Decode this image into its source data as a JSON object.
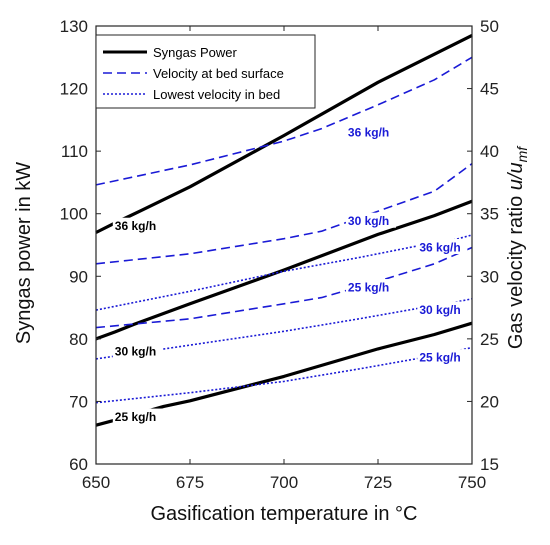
{
  "chart_data": {
    "type": "line",
    "xlabel": "Gasification temperature in °C",
    "ylabel_left": "Syngas power in kW",
    "ylabel_right_prefix": "Gas velocity ratio ",
    "ylabel_right_math": "u/u",
    "ylabel_right_sub": "mf",
    "xlim": [
      650,
      750
    ],
    "ylim_left": [
      60,
      130
    ],
    "ylim_right": [
      15,
      50
    ],
    "x_ticks": [
      650,
      675,
      700,
      725,
      750
    ],
    "y_left_ticks": [
      60,
      70,
      80,
      90,
      100,
      110,
      120,
      130
    ],
    "y_right_ticks": [
      15,
      20,
      25,
      30,
      35,
      40,
      45,
      50
    ],
    "grid": false,
    "legend_position": "top-left",
    "legend": [
      {
        "label": "Syngas Power",
        "style": "solid"
      },
      {
        "label": "Velocity at bed surface",
        "style": "dashed"
      },
      {
        "label": "Lowest velocity in bed",
        "style": "dotted"
      }
    ],
    "colors": {
      "power": "#000000",
      "velocity": "#1a1ad6"
    },
    "series": [
      {
        "group": "power",
        "axis": "left",
        "style": "solid",
        "label": "36 kg/h",
        "x": [
          650,
          655,
          662,
          675,
          700,
          725,
          740,
          750
        ],
        "y": [
          97,
          98.5,
          100.5,
          104.3,
          112.5,
          121,
          125.5,
          128.5
        ]
      },
      {
        "group": "power",
        "axis": "left",
        "style": "solid",
        "label": "30 kg/h",
        "x": [
          650,
          655,
          660,
          675,
          700,
          725,
          740,
          750
        ],
        "y": [
          80,
          81.1,
          82.3,
          85.6,
          91,
          96.7,
          99.7,
          102
        ]
      },
      {
        "group": "power",
        "axis": "left",
        "style": "solid",
        "label": "25 kg/h",
        "x": [
          650,
          655,
          668,
          675,
          700,
          725,
          740,
          750
        ],
        "y": [
          66.2,
          67,
          69.2,
          70.1,
          74,
          78.4,
          80.7,
          82.5
        ]
      },
      {
        "group": "surface",
        "axis": "right",
        "style": "dashed",
        "label": "36 kg/h",
        "x": [
          650,
          675,
          700,
          710,
          725,
          740,
          750
        ],
        "y": [
          37.3,
          38.9,
          40.8,
          41.8,
          43.7,
          45.7,
          47.5
        ]
      },
      {
        "group": "surface",
        "axis": "right",
        "style": "dashed",
        "label": "30 kg/h",
        "x": [
          650,
          675,
          700,
          710,
          725,
          740,
          750
        ],
        "y": [
          31,
          31.8,
          33,
          33.6,
          35.2,
          36.8,
          39
        ]
      },
      {
        "group": "surface",
        "axis": "right",
        "style": "dashed",
        "label": "25 kg/h",
        "x": [
          650,
          675,
          700,
          710,
          725,
          740,
          750
        ],
        "y": [
          25.9,
          26.6,
          27.8,
          28.3,
          29.6,
          31,
          32.3
        ]
      },
      {
        "group": "lowest",
        "axis": "right",
        "style": "dotted",
        "label": "36 kg/h",
        "x": [
          650,
          675,
          700,
          720,
          735,
          745,
          750
        ],
        "y": [
          27.3,
          28.8,
          30.4,
          31.5,
          32.4,
          32.9,
          33.3
        ]
      },
      {
        "group": "lowest",
        "axis": "right",
        "style": "dotted",
        "label": "30 kg/h",
        "x": [
          650,
          675,
          700,
          720,
          735,
          745,
          750
        ],
        "y": [
          23.4,
          24.5,
          25.6,
          26.6,
          27.4,
          27.9,
          28.2
        ]
      },
      {
        "group": "lowest",
        "axis": "right",
        "style": "dotted",
        "label": "25 kg/h",
        "x": [
          650,
          675,
          700,
          720,
          735,
          745,
          750
        ],
        "y": [
          19.9,
          20.7,
          21.6,
          22.6,
          23.4,
          24,
          24.3
        ]
      }
    ],
    "annotations": [
      {
        "text": "36 kg/h",
        "x": 655,
        "y": 98,
        "axis": "left",
        "color": "#000000"
      },
      {
        "text": "30 kg/h",
        "x": 655,
        "y": 78,
        "axis": "left",
        "color": "#000000"
      },
      {
        "text": "25 kg/h",
        "x": 655,
        "y": 67.5,
        "axis": "left",
        "color": "#000000"
      },
      {
        "text": "36 kg/h",
        "x": 717,
        "y": 41.5,
        "axis": "right",
        "color": "#1a1ad6"
      },
      {
        "text": "30 kg/h",
        "x": 717,
        "y": 34.4,
        "axis": "right",
        "color": "#1a1ad6"
      },
      {
        "text": "36 kg/h",
        "x": 736,
        "y": 32.3,
        "axis": "right",
        "color": "#1a1ad6"
      },
      {
        "text": "25 kg/h",
        "x": 717,
        "y": 29.1,
        "axis": "right",
        "color": "#1a1ad6"
      },
      {
        "text": "30 kg/h",
        "x": 736,
        "y": 27.3,
        "axis": "right",
        "color": "#1a1ad6"
      },
      {
        "text": "25 kg/h",
        "x": 736,
        "y": 23.5,
        "axis": "right",
        "color": "#1a1ad6"
      }
    ]
  }
}
